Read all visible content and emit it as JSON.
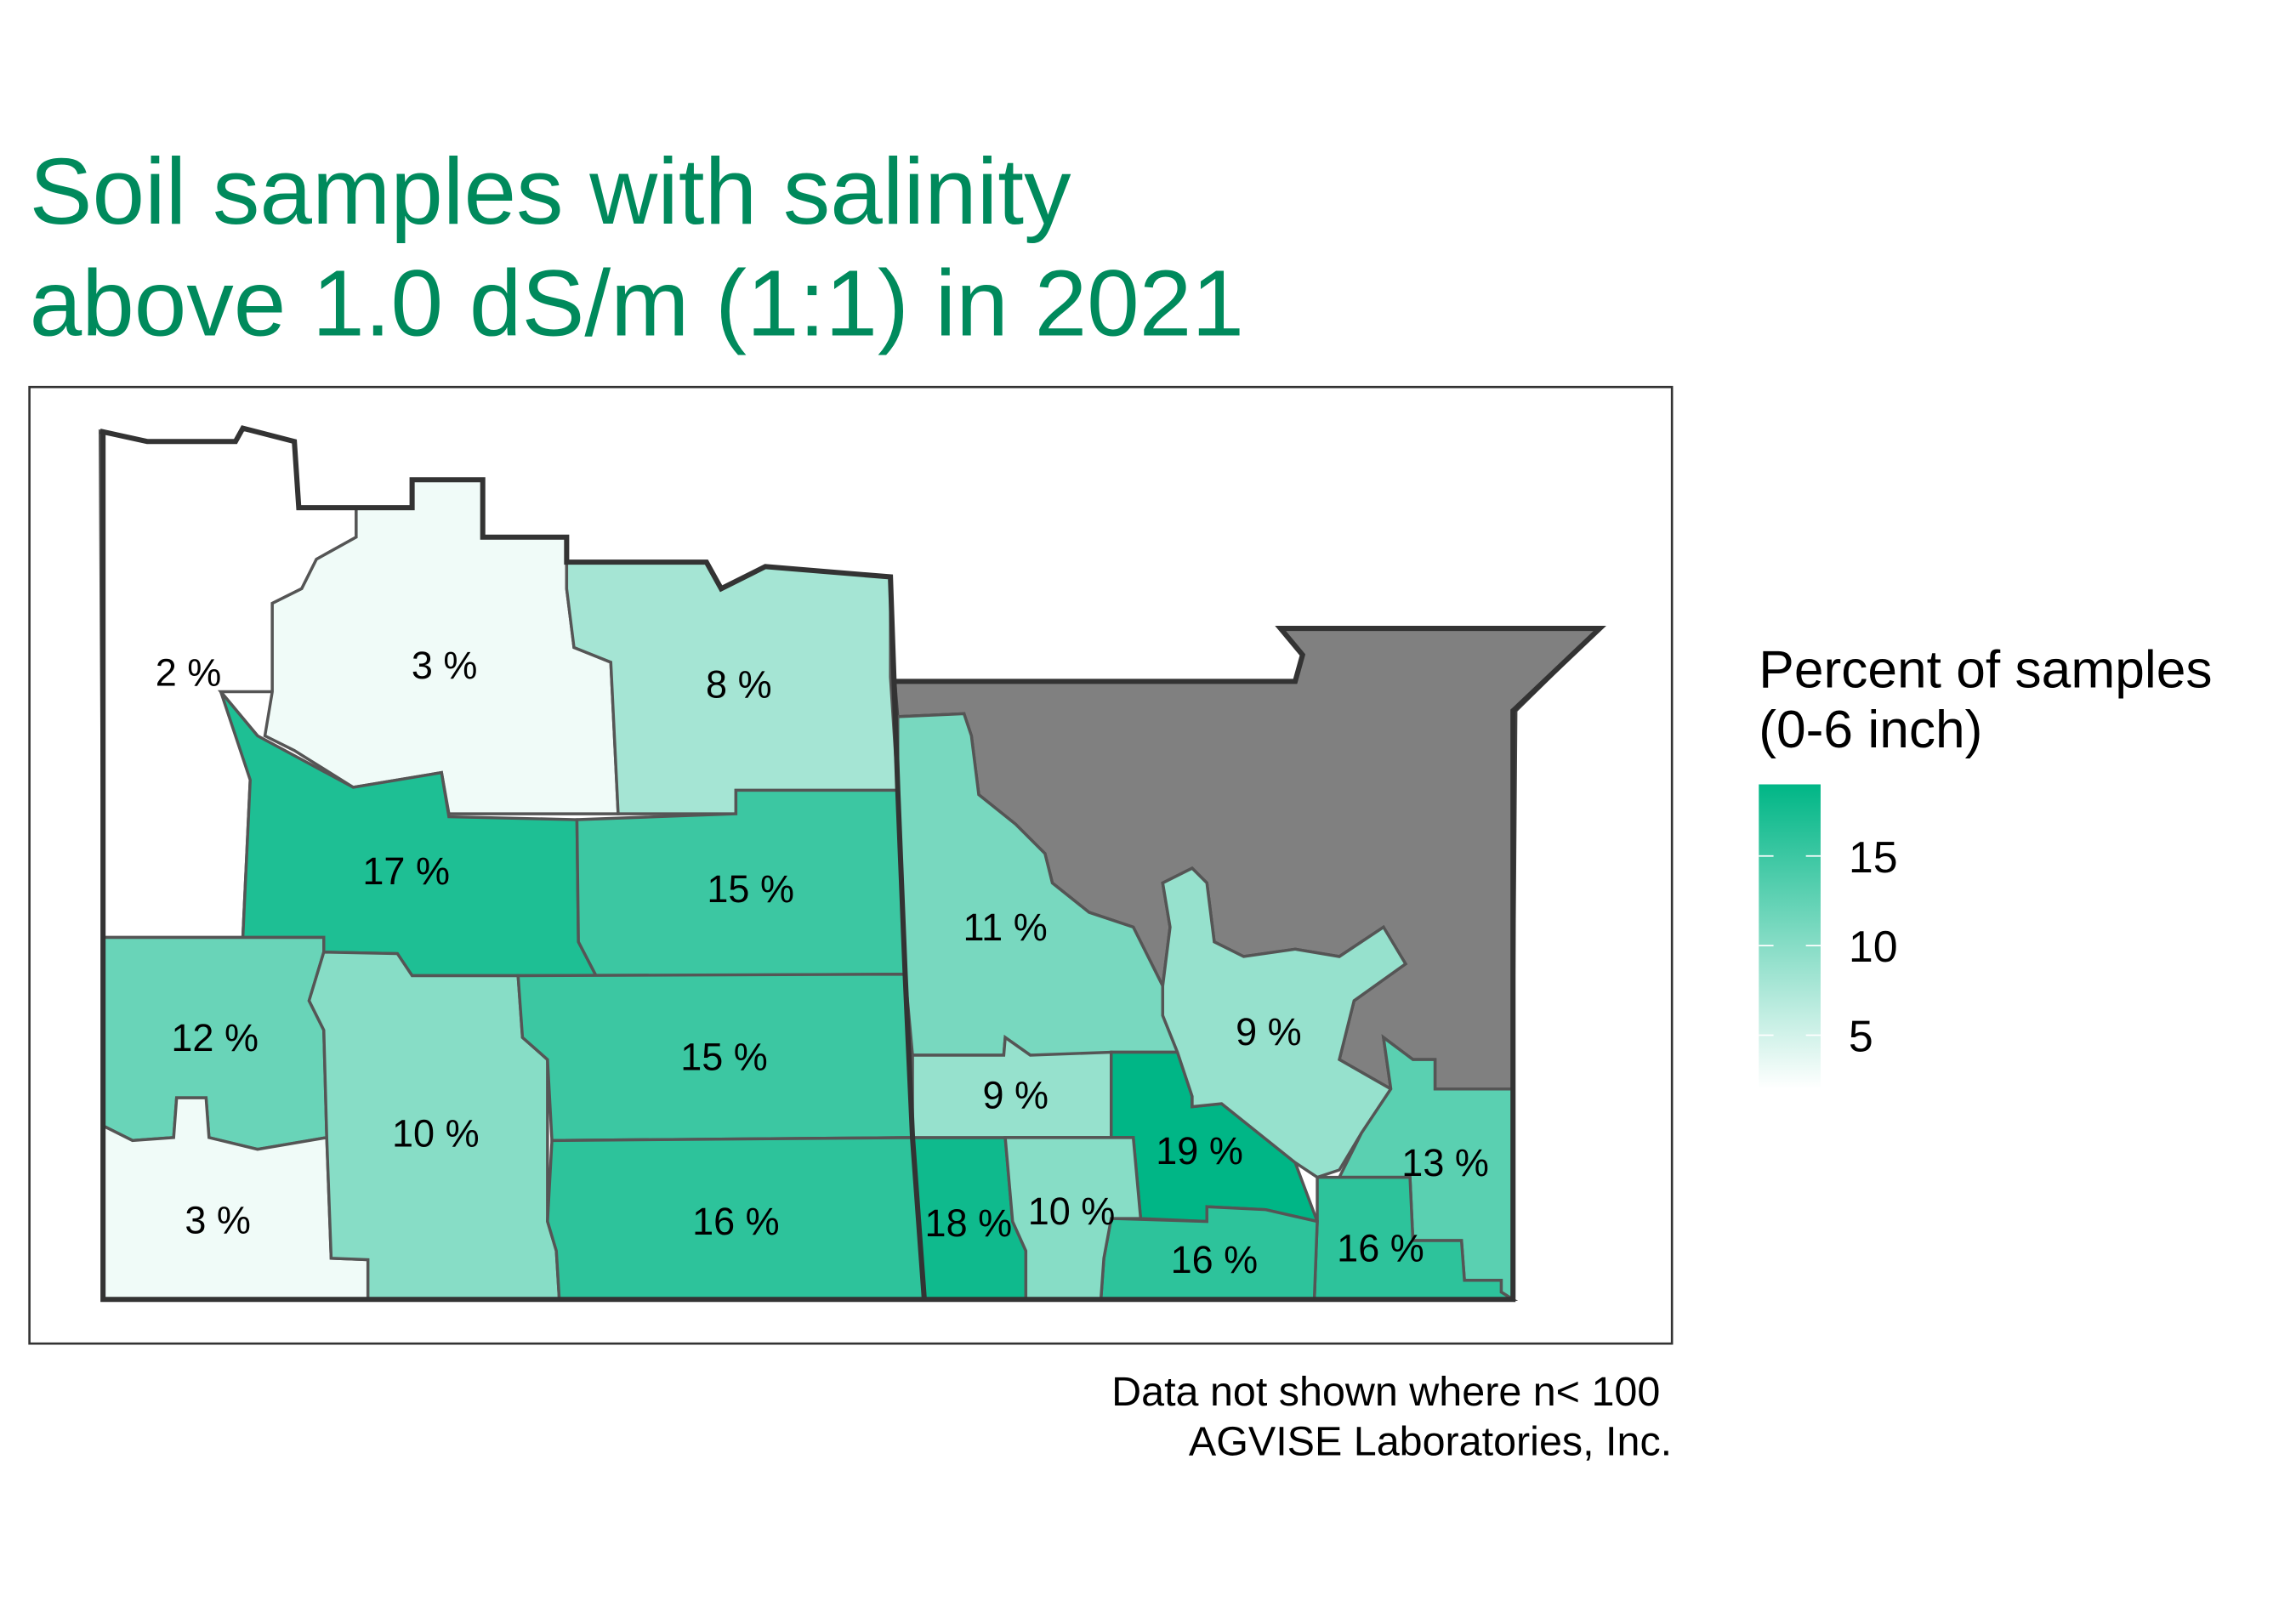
{
  "title": {
    "line1": "Soil samples with salinity",
    "line2": "above 1.0 dS/m (1:1) in 2021",
    "color": "#008a5c"
  },
  "legend": {
    "title_line1": "Percent of samples",
    "title_line2": "(0-6 inch)",
    "ticks": [
      {
        "value": 15,
        "label": "15"
      },
      {
        "value": 10,
        "label": "10"
      },
      {
        "value": 5,
        "label": "5"
      }
    ],
    "range": [
      2,
      19
    ],
    "low_color": "#ffffff",
    "high_color": "#00b686"
  },
  "no_data_color": "#808080",
  "caption": {
    "line1": "Data not shown where n< 100",
    "line2": "AGVISE Laboratories, Inc."
  },
  "chart_data": {
    "type": "choropleth",
    "regions": [
      {
        "value": 2,
        "label": "2 %"
      },
      {
        "value": 3,
        "label": "3 %"
      },
      {
        "value": 8,
        "label": "8 %"
      },
      {
        "value": 17,
        "label": "17 %"
      },
      {
        "value": 15,
        "label": "15 %"
      },
      {
        "value": 12,
        "label": "12 %"
      },
      {
        "value": 3,
        "label": "3 %"
      },
      {
        "value": 10,
        "label": "10 %"
      },
      {
        "value": 15,
        "label": "15 %"
      },
      {
        "value": 16,
        "label": "16 %"
      },
      {
        "value": 18,
        "label": "18 %"
      },
      {
        "value": 11,
        "label": "11 %"
      },
      {
        "value": 9,
        "label": "9 %"
      },
      {
        "value": 19,
        "label": "19 %"
      },
      {
        "value": 9,
        "label": "9 %"
      },
      {
        "value": 13,
        "label": "13 %"
      },
      {
        "value": 16,
        "label": "16 %"
      },
      {
        "value": 16,
        "label": "16 %"
      },
      {
        "value": 10,
        "label": "10 %"
      }
    ]
  }
}
